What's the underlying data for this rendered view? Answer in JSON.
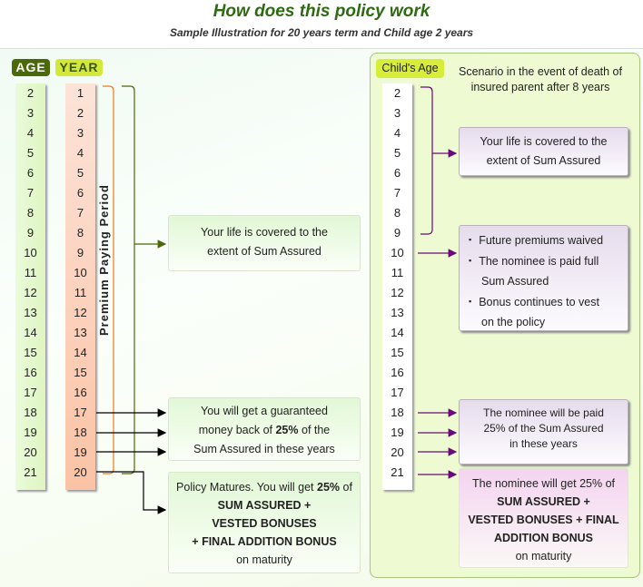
{
  "title": "How does this policy work",
  "subtitle": "Sample Illustration for 20 years term and Child age 2 years",
  "left": {
    "age_label": "AGE",
    "year_label": "YEAR",
    "ages": [
      "2",
      "3",
      "4",
      "5",
      "6",
      "7",
      "8",
      "9",
      "10",
      "11",
      "12",
      "13",
      "14",
      "15",
      "16",
      "17",
      "18",
      "19",
      "20",
      "21"
    ],
    "years": [
      "1",
      "2",
      "3",
      "4",
      "5",
      "6",
      "7",
      "8",
      "9",
      "10",
      "11",
      "12",
      "13",
      "14",
      "15",
      "16",
      "17",
      "18",
      "19",
      "20"
    ],
    "period_label": "Premium Paying Period",
    "box_cover": [
      "Your life is covered to the",
      "extent of Sum Assured"
    ],
    "box_money_back": {
      "l1": "You will get a guaranteed",
      "l2a": "money back of ",
      "l2b": "25%",
      "l2c": " of the",
      "l3": "Sum Assured in these years"
    },
    "box_maturity": {
      "l1a": "Policy Matures. You will get ",
      "l1b": "25%",
      "l1c": " of",
      "l2": "SUM ASSURED +",
      "l3": "VESTED BONUSES",
      "l4": "+ FINAL ADDITION BONUS",
      "l5": "on maturity"
    }
  },
  "right": {
    "child_age_label": "Child's Age",
    "scenario": [
      "Scenario in the event of death of",
      "insured parent after 8 years"
    ],
    "ages": [
      "2",
      "3",
      "4",
      "5",
      "6",
      "7",
      "8",
      "9",
      "10",
      "11",
      "12",
      "13",
      "14",
      "15",
      "16",
      "17",
      "18",
      "19",
      "20",
      "21"
    ],
    "box_cover": [
      "Your life is covered to the",
      "extent of Sum Assured"
    ],
    "box_death": [
      "Future premiums waived",
      "The nominee is paid full",
      "Sum Assured",
      "Bonus continues to vest",
      "on the policy"
    ],
    "box_paid": [
      "The nominee will be paid",
      "25% of the Sum Assured",
      "in these years"
    ],
    "box_maturity": [
      "The nominee will get 25% of",
      "SUM ASSURED +",
      "VESTED BONUSES + FINAL",
      "ADDITION BONUS",
      "on maturity"
    ]
  },
  "colors": {
    "title": "#2e6a12",
    "age_badge": "#4a6a0a",
    "year_badge": "#d4e83a",
    "purple": "#6a0a7a",
    "orange": "#f07a20",
    "olive": "#4a6a0a"
  }
}
